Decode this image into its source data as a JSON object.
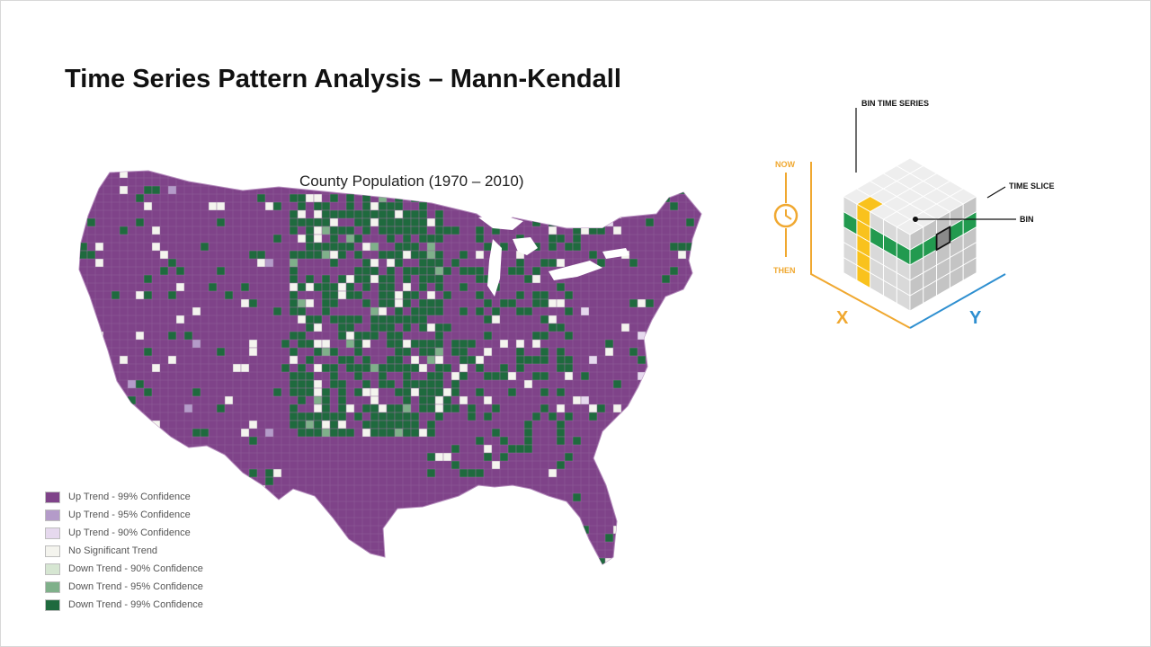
{
  "slide": {
    "title": "Time Series Pattern Analysis – Mann-Kendall"
  },
  "map": {
    "title": "County Population (1970 – 2010)",
    "colors": {
      "up_99": "#7f4389",
      "up_95": "#b49bc9",
      "up_90": "#e6d9ee",
      "none": "#f4f4ee",
      "down_90": "#d6e6d2",
      "down_95": "#7fb08a",
      "down_99": "#1f6a3e"
    }
  },
  "legend": {
    "items": [
      {
        "label": "Up Trend - 99% Confidence",
        "color": "#7f4389"
      },
      {
        "label": "Up Trend - 95% Confidence",
        "color": "#b49bc9"
      },
      {
        "label": "Up Trend - 90% Confidence",
        "color": "#e6d9ee"
      },
      {
        "label": "No Significant Trend",
        "color": "#f4f4ee"
      },
      {
        "label": "Down Trend - 90% Confidence",
        "color": "#d6e6d2"
      },
      {
        "label": "Down Trend - 95% Confidence",
        "color": "#7fb08a"
      },
      {
        "label": "Down Trend - 99% Confidence",
        "color": "#1f6a3e"
      }
    ]
  },
  "cube": {
    "bin_time_series_label": "BIN TIME SERIES",
    "time_slice_label": "TIME SLICE",
    "bin_label": "BIN",
    "now_label": "NOW",
    "then_label": "THEN",
    "x_label": "X",
    "y_label": "Y",
    "colors": {
      "orange": "#f0a830",
      "blue": "#2e8fd0",
      "green": "#229a4f",
      "yellow": "#f9c21d"
    }
  }
}
